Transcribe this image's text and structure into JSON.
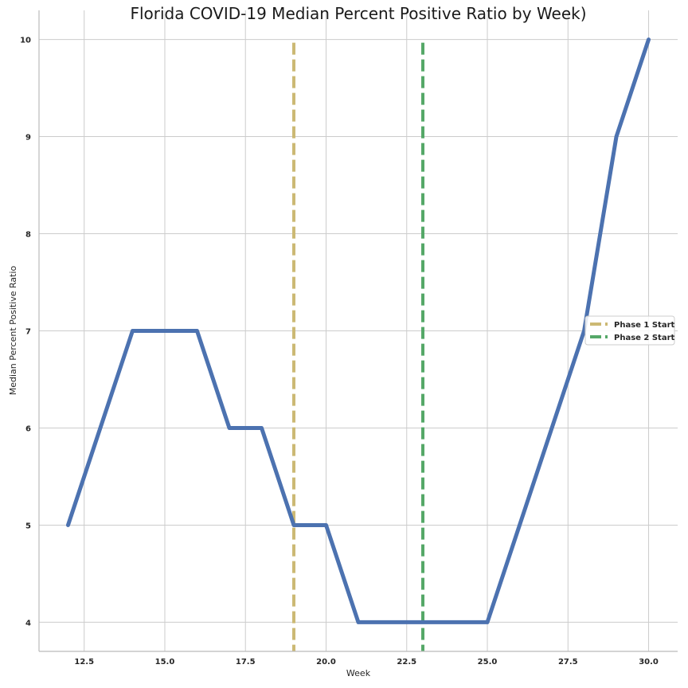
{
  "chart_data": {
    "type": "line",
    "title": "Florida COVID-19 Median Percent Positive Ratio by Week)",
    "xlabel": "Week",
    "ylabel": "Median Percent Positive Ratio",
    "xlim": [
      11.1,
      30.9
    ],
    "ylim": [
      3.7,
      10.3
    ],
    "xticks": [
      12.5,
      15.0,
      17.5,
      20.0,
      22.5,
      25.0,
      27.5,
      30.0
    ],
    "xtick_labels": [
      "12.5",
      "15.0",
      "17.5",
      "20.0",
      "22.5",
      "25.0",
      "27.5",
      "30.0"
    ],
    "yticks": [
      4,
      5,
      6,
      7,
      8,
      9,
      10
    ],
    "ytick_labels": [
      "4",
      "5",
      "6",
      "7",
      "8",
      "9",
      "10"
    ],
    "grid": true,
    "legend_position": "right",
    "series": [
      {
        "x": [
          12,
          13,
          14,
          15,
          16,
          17,
          18,
          19,
          20,
          21,
          22,
          23,
          24,
          25,
          26,
          27,
          28,
          29,
          30
        ],
        "values": [
          5,
          6,
          7,
          7,
          7,
          6,
          6,
          5,
          5,
          4,
          4,
          4,
          4,
          4,
          5,
          6,
          7,
          9,
          10
        ],
        "color": "#4c72b0"
      }
    ],
    "vlines": [
      {
        "name": "Phase 1 Start",
        "x": 19,
        "color": "#ccb974",
        "style": "dashed"
      },
      {
        "name": "Phase 2 Start",
        "x": 23,
        "color": "#55a868",
        "style": "dashed"
      }
    ]
  }
}
